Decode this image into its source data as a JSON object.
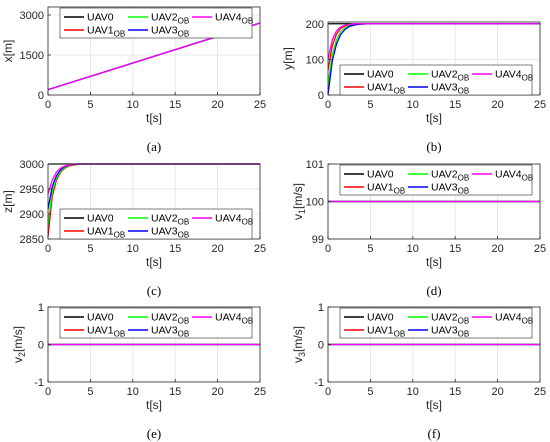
{
  "legend_entries": [
    {
      "label": "UAV0",
      "sub": "",
      "color": "#000000"
    },
    {
      "label": "UAV2",
      "sub": "OB",
      "color": "#00ff00"
    },
    {
      "label": "UAV4",
      "sub": "OB",
      "color": "#ff00ff"
    },
    {
      "label": "UAV1",
      "sub": "OB",
      "color": "#ff0000"
    },
    {
      "label": "UAV3",
      "sub": "OB",
      "color": "#0000ff"
    }
  ],
  "chart_data": [
    {
      "id": "a",
      "caption": "(a)",
      "type": "line",
      "xlabel": "t[s]",
      "ylabel": "x[m]",
      "xlim": [
        0,
        25
      ],
      "ylim": [
        0,
        3300
      ],
      "xticks": [
        0,
        5,
        10,
        15,
        20,
        25
      ],
      "yticks": [
        0,
        1500,
        3000
      ],
      "yticklabels": [
        "0",
        "1500",
        "3000"
      ],
      "grid": true,
      "legend_position": "top",
      "series": [
        {
          "name": "UAV0",
          "x": [
            0,
            25
          ],
          "y": [
            200,
            2700
          ]
        },
        {
          "name": "UAV1OB",
          "x": [
            0,
            25
          ],
          "y": [
            200,
            2700
          ]
        },
        {
          "name": "UAV2OB",
          "x": [
            0,
            25
          ],
          "y": [
            200,
            2700
          ]
        },
        {
          "name": "UAV3OB",
          "x": [
            0,
            25
          ],
          "y": [
            200,
            2700
          ]
        },
        {
          "name": "UAV4OB",
          "x": [
            0,
            25
          ],
          "y": [
            200,
            2700
          ]
        }
      ]
    },
    {
      "id": "b",
      "caption": "(b)",
      "type": "line",
      "xlabel": "t[s]",
      "ylabel": "y[m]",
      "xlim": [
        0,
        25
      ],
      "ylim": [
        0,
        205
      ],
      "xticks": [
        0,
        5,
        10,
        15,
        20,
        25
      ],
      "yticks": [
        0,
        100,
        200
      ],
      "yticklabels": [
        "0",
        "100",
        "200"
      ],
      "grid": true,
      "legend_position": "bottom",
      "series": [
        {
          "name": "UAV0",
          "x": [
            0,
            25
          ],
          "y": [
            200,
            200
          ]
        },
        {
          "name": "UAV1OB",
          "x": [
            0,
            0.5,
            1,
            1.5,
            2,
            2.5,
            3,
            3.5,
            4,
            5,
            25
          ],
          "y": [
            70,
            138,
            171,
            187,
            194,
            197,
            199,
            199.5,
            200,
            200,
            200
          ]
        },
        {
          "name": "UAV2OB",
          "x": [
            0,
            0.5,
            1,
            1.5,
            2,
            2.5,
            3,
            3.5,
            4,
            5,
            25
          ],
          "y": [
            30,
            112,
            155,
            178,
            189,
            194,
            197,
            199,
            199.5,
            200,
            200
          ]
        },
        {
          "name": "UAV3OB",
          "x": [
            0,
            0.5,
            1,
            1.5,
            2,
            2.5,
            3,
            3.5,
            4,
            5,
            25
          ],
          "y": [
            0,
            95,
            143,
            170,
            184,
            192,
            196,
            198,
            199,
            200,
            200
          ]
        },
        {
          "name": "UAV4OB",
          "x": [
            0,
            0.5,
            1,
            1.5,
            2,
            2.5,
            3,
            3.5,
            4,
            5,
            25
          ],
          "y": [
            100,
            155,
            180,
            191,
            196,
            198,
            199.5,
            200,
            200,
            200,
            200
          ]
        }
      ]
    },
    {
      "id": "c",
      "caption": "(c)",
      "type": "line",
      "xlabel": "t[s]",
      "ylabel": "z[m]",
      "xlim": [
        0,
        25
      ],
      "ylim": [
        2850,
        3000
      ],
      "xticks": [
        0,
        5,
        10,
        15,
        20,
        25
      ],
      "yticks": [
        2850,
        2900,
        2950,
        3000
      ],
      "yticklabels": [
        "2850",
        "2900",
        "2950",
        "3000"
      ],
      "grid": true,
      "legend_position": "bottom",
      "series": [
        {
          "name": "UAV0",
          "x": [
            0,
            25
          ],
          "y": [
            3000,
            3000
          ]
        },
        {
          "name": "UAV1OB",
          "x": [
            0,
            0.5,
            1,
            1.5,
            2,
            2.5,
            3,
            3.5,
            4,
            5,
            25
          ],
          "y": [
            2855,
            2935,
            2968,
            2984,
            2992,
            2996,
            2998,
            2999,
            3000,
            3000,
            3000
          ]
        },
        {
          "name": "UAV2OB",
          "x": [
            0,
            0.5,
            1,
            1.5,
            2,
            2.5,
            3,
            3.5,
            4,
            5,
            25
          ],
          "y": [
            2880,
            2945,
            2972,
            2986,
            2993,
            2997,
            2999,
            3000,
            3000,
            3000,
            3000
          ]
        },
        {
          "name": "UAV3OB",
          "x": [
            0,
            0.5,
            1,
            1.5,
            2,
            2.5,
            3,
            3.5,
            4,
            5,
            25
          ],
          "y": [
            2910,
            2955,
            2977,
            2989,
            2995,
            2998,
            2999,
            3000,
            3000,
            3000,
            3000
          ]
        },
        {
          "name": "UAV4OB",
          "x": [
            0,
            0.5,
            1,
            1.5,
            2,
            2.5,
            3,
            3.5,
            4,
            5,
            25
          ],
          "y": [
            2940,
            2968,
            2984,
            2992,
            2996,
            2998,
            2999.5,
            3000,
            3000,
            3000,
            3000
          ]
        }
      ]
    },
    {
      "id": "d",
      "caption": "(d)",
      "type": "line",
      "xlabel": "t[s]",
      "ylabel": "v1[m/s]",
      "ylabel_main": "v",
      "ylabel_sub": "1",
      "ylabel_tail": "[m/s]",
      "xlim": [
        0,
        25
      ],
      "ylim": [
        99,
        101
      ],
      "xticks": [
        0,
        5,
        10,
        15,
        20,
        25
      ],
      "yticks": [
        99,
        100,
        101
      ],
      "yticklabels": [
        "99",
        "100",
        "101"
      ],
      "grid": true,
      "legend_position": "top",
      "series": [
        {
          "name": "UAV0",
          "x": [
            0,
            25
          ],
          "y": [
            100,
            100
          ]
        },
        {
          "name": "UAV1OB",
          "x": [
            0,
            25
          ],
          "y": [
            100,
            100
          ]
        },
        {
          "name": "UAV2OB",
          "x": [
            0,
            25
          ],
          "y": [
            100,
            100
          ]
        },
        {
          "name": "UAV3OB",
          "x": [
            0,
            25
          ],
          "y": [
            100,
            100
          ]
        },
        {
          "name": "UAV4OB",
          "x": [
            0,
            25
          ],
          "y": [
            100,
            100
          ]
        }
      ]
    },
    {
      "id": "e",
      "caption": "(e)",
      "type": "line",
      "xlabel": "t[s]",
      "ylabel": "v2[m/s]",
      "ylabel_main": "v",
      "ylabel_sub": "2",
      "ylabel_tail": "[m/s]",
      "xlim": [
        0,
        25
      ],
      "ylim": [
        -1,
        1
      ],
      "xticks": [
        0,
        5,
        10,
        15,
        20,
        25
      ],
      "yticks": [
        -1,
        0,
        1
      ],
      "yticklabels": [
        "-1",
        "0",
        "1"
      ],
      "grid": true,
      "legend_position": "top",
      "series": [
        {
          "name": "UAV0",
          "x": [
            0,
            25
          ],
          "y": [
            0,
            0
          ]
        },
        {
          "name": "UAV1OB",
          "x": [
            0,
            25
          ],
          "y": [
            0,
            0
          ]
        },
        {
          "name": "UAV2OB",
          "x": [
            0,
            25
          ],
          "y": [
            0,
            0
          ]
        },
        {
          "name": "UAV3OB",
          "x": [
            0,
            25
          ],
          "y": [
            0,
            0
          ]
        },
        {
          "name": "UAV4OB",
          "x": [
            0,
            25
          ],
          "y": [
            0,
            0
          ]
        }
      ]
    },
    {
      "id": "f",
      "caption": "(f)",
      "type": "line",
      "xlabel": "t[s]",
      "ylabel": "v3[m/s]",
      "ylabel_main": "v",
      "ylabel_sub": "3",
      "ylabel_tail": "[m/s]",
      "xlim": [
        0,
        25
      ],
      "ylim": [
        -1,
        1
      ],
      "xticks": [
        0,
        5,
        10,
        15,
        20,
        25
      ],
      "yticks": [
        -1,
        0,
        1
      ],
      "yticklabels": [
        "-1",
        "0",
        "1"
      ],
      "grid": true,
      "legend_position": "top",
      "series": [
        {
          "name": "UAV0",
          "x": [
            0,
            25
          ],
          "y": [
            0,
            0
          ]
        },
        {
          "name": "UAV1OB",
          "x": [
            0,
            25
          ],
          "y": [
            0,
            0
          ]
        },
        {
          "name": "UAV2OB",
          "x": [
            0,
            25
          ],
          "y": [
            0,
            0
          ]
        },
        {
          "name": "UAV3OB",
          "x": [
            0,
            25
          ],
          "y": [
            0,
            0
          ]
        },
        {
          "name": "UAV4OB",
          "x": [
            0,
            25
          ],
          "y": [
            0,
            0
          ]
        }
      ]
    }
  ]
}
